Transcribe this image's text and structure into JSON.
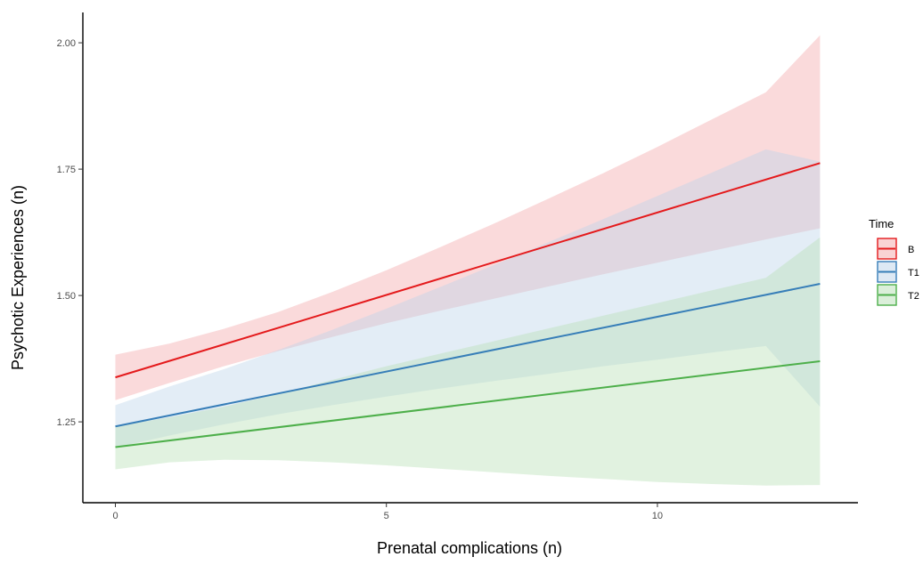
{
  "chart_data": {
    "type": "line",
    "xlabel": "Prenatal complications (n)",
    "ylabel": "Psychotic Experiences (n)",
    "xlim": [
      -0.6,
      13.7
    ],
    "ylim": [
      1.09,
      2.06
    ],
    "x_ticks": [
      0,
      5,
      10
    ],
    "y_ticks": [
      1.25,
      1.5,
      1.75,
      2.0
    ],
    "x_tick_labels": [
      "0",
      "5",
      "10"
    ],
    "y_tick_labels": [
      "1.25",
      "1.50",
      "1.75",
      "2.00"
    ],
    "grid": false,
    "legend": {
      "title": "Time",
      "position": "right"
    },
    "series": [
      {
        "name": "B",
        "color": "#e41a1c",
        "band_color": "#f4a7aa",
        "x": [
          0,
          13
        ],
        "y": [
          1.338,
          1.762
        ],
        "band_x": [
          0,
          1,
          2,
          3,
          4,
          5,
          6,
          7,
          8,
          9,
          10,
          11,
          12,
          13
        ],
        "band_lower": [
          1.293,
          1.327,
          1.36,
          1.39,
          1.418,
          1.445,
          1.47,
          1.494,
          1.518,
          1.542,
          1.565,
          1.588,
          1.611,
          1.633
        ],
        "band_upper": [
          1.383,
          1.405,
          1.434,
          1.467,
          1.507,
          1.55,
          1.596,
          1.643,
          1.692,
          1.742,
          1.794,
          1.848,
          1.902,
          2.015
        ]
      },
      {
        "name": "T1",
        "color": "#377eb8",
        "band_color": "#bdd3ea",
        "x": [
          0,
          13
        ],
        "y": [
          1.241,
          1.523
        ],
        "band_x": [
          0,
          1,
          2,
          3,
          4,
          5,
          6,
          7,
          8,
          9,
          10,
          11,
          12,
          13
        ],
        "band_lower": [
          1.199,
          1.223,
          1.245,
          1.265,
          1.283,
          1.3,
          1.316,
          1.331,
          1.345,
          1.36,
          1.373,
          1.387,
          1.4,
          1.28
        ],
        "band_upper": [
          1.283,
          1.32,
          1.354,
          1.392,
          1.432,
          1.474,
          1.517,
          1.561,
          1.606,
          1.651,
          1.697,
          1.743,
          1.789,
          1.765
        ]
      },
      {
        "name": "T2",
        "color": "#4daf4a",
        "band_color": "#b8dfb5",
        "x": [
          0,
          13
        ],
        "y": [
          1.2,
          1.37
        ],
        "band_x": [
          0,
          1,
          2,
          3,
          4,
          5,
          6,
          7,
          8,
          9,
          10,
          11,
          12,
          13
        ],
        "band_lower": [
          1.156,
          1.17,
          1.175,
          1.174,
          1.17,
          1.164,
          1.157,
          1.15,
          1.143,
          1.137,
          1.131,
          1.127,
          1.124,
          1.125
        ],
        "band_upper": [
          1.241,
          1.259,
          1.28,
          1.305,
          1.333,
          1.36,
          1.385,
          1.41,
          1.435,
          1.46,
          1.485,
          1.51,
          1.535,
          1.615
        ]
      }
    ]
  }
}
